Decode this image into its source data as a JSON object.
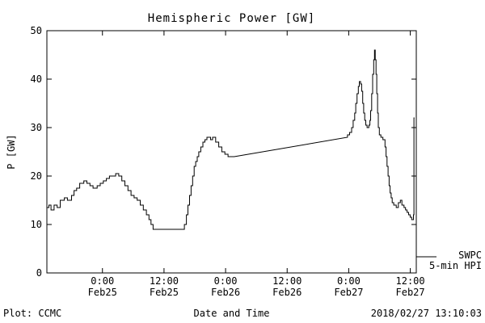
{
  "window": {
    "background": "#ffffff",
    "line_color": "#000000"
  },
  "footer": {
    "left": "Plot: CCMC",
    "right": "2018/02/27 13:10:03"
  },
  "chart_data": {
    "type": "line",
    "title": "Hemispheric Power [GW]",
    "xlabel": "Date and Time",
    "ylabel": "P [GW]",
    "ylim": [
      0,
      50
    ],
    "yticks": [
      0,
      10,
      20,
      30,
      40,
      50
    ],
    "grid": false,
    "legend_position": "right-outside",
    "legend_lines": [
      "SWPC",
      "5-min HPI"
    ],
    "x_hours_range": [
      0,
      72
    ],
    "xticks": [
      {
        "hours": 10.83,
        "time": "0:00",
        "date": "Feb25"
      },
      {
        "hours": 22.83,
        "time": "12:00",
        "date": "Feb25"
      },
      {
        "hours": 34.83,
        "time": "0:00",
        "date": "Feb26"
      },
      {
        "hours": 46.83,
        "time": "12:00",
        "date": "Feb26"
      },
      {
        "hours": 58.83,
        "time": "0:00",
        "date": "Feb27"
      },
      {
        "hours": 70.83,
        "time": "12:00",
        "date": "Feb27"
      }
    ],
    "series": [
      {
        "name": "SWPC 5-min HPI",
        "units": "GW",
        "points": [
          [
            0,
            13.5
          ],
          [
            0.4,
            13.5
          ],
          [
            0.4,
            14
          ],
          [
            0.8,
            14
          ],
          [
            0.8,
            13
          ],
          [
            1.4,
            13
          ],
          [
            1.4,
            14
          ],
          [
            2.0,
            14
          ],
          [
            2.0,
            13.5
          ],
          [
            2.6,
            13.5
          ],
          [
            2.6,
            15
          ],
          [
            3.4,
            15
          ],
          [
            3.4,
            15.5
          ],
          [
            4.0,
            15.5
          ],
          [
            4.0,
            15
          ],
          [
            4.8,
            15
          ],
          [
            4.8,
            16
          ],
          [
            5.3,
            16
          ],
          [
            5.3,
            17
          ],
          [
            5.8,
            17
          ],
          [
            5.8,
            17.5
          ],
          [
            6.4,
            17.5
          ],
          [
            6.4,
            18.5
          ],
          [
            7.2,
            18.5
          ],
          [
            7.2,
            19
          ],
          [
            7.8,
            19
          ],
          [
            7.8,
            18.5
          ],
          [
            8.4,
            18.5
          ],
          [
            8.4,
            18
          ],
          [
            9.0,
            18
          ],
          [
            9.0,
            17.5
          ],
          [
            9.8,
            17.5
          ],
          [
            9.8,
            18
          ],
          [
            10.4,
            18
          ],
          [
            10.4,
            18.5
          ],
          [
            11.0,
            18.5
          ],
          [
            11.0,
            19
          ],
          [
            11.6,
            19
          ],
          [
            11.6,
            19.5
          ],
          [
            12.2,
            19.5
          ],
          [
            12.2,
            20
          ],
          [
            13.4,
            20
          ],
          [
            13.4,
            20.5
          ],
          [
            14.0,
            20.5
          ],
          [
            14.0,
            20
          ],
          [
            14.6,
            20
          ],
          [
            14.6,
            19
          ],
          [
            15.2,
            19
          ],
          [
            15.2,
            18
          ],
          [
            15.8,
            18
          ],
          [
            15.8,
            17
          ],
          [
            16.4,
            17
          ],
          [
            16.4,
            16
          ],
          [
            17.0,
            16
          ],
          [
            17.0,
            15.5
          ],
          [
            17.6,
            15.5
          ],
          [
            17.6,
            15
          ],
          [
            18.2,
            15
          ],
          [
            18.2,
            14
          ],
          [
            18.8,
            14
          ],
          [
            18.8,
            13
          ],
          [
            19.4,
            13
          ],
          [
            19.4,
            12
          ],
          [
            19.9,
            12
          ],
          [
            19.9,
            11
          ],
          [
            20.3,
            11
          ],
          [
            20.3,
            10
          ],
          [
            20.7,
            10
          ],
          [
            20.7,
            9
          ],
          [
            26.8,
            9
          ],
          [
            26.8,
            10
          ],
          [
            27.2,
            10
          ],
          [
            27.2,
            12
          ],
          [
            27.5,
            12
          ],
          [
            27.5,
            14
          ],
          [
            27.8,
            14
          ],
          [
            27.8,
            16
          ],
          [
            28.1,
            16
          ],
          [
            28.1,
            18
          ],
          [
            28.4,
            18
          ],
          [
            28.4,
            20
          ],
          [
            28.7,
            20
          ],
          [
            28.7,
            22
          ],
          [
            29.0,
            22
          ],
          [
            29.0,
            23
          ],
          [
            29.3,
            23
          ],
          [
            29.3,
            24
          ],
          [
            29.6,
            24
          ],
          [
            29.6,
            25
          ],
          [
            30.0,
            25
          ],
          [
            30.0,
            26
          ],
          [
            30.4,
            26
          ],
          [
            30.4,
            27
          ],
          [
            30.8,
            27
          ],
          [
            30.8,
            27.5
          ],
          [
            31.2,
            27.5
          ],
          [
            31.2,
            28
          ],
          [
            31.9,
            28
          ],
          [
            31.9,
            27.5
          ],
          [
            32.3,
            27.5
          ],
          [
            32.3,
            28
          ],
          [
            32.9,
            28
          ],
          [
            32.9,
            27
          ],
          [
            33.5,
            27
          ],
          [
            33.5,
            26
          ],
          [
            34.1,
            26
          ],
          [
            34.1,
            25
          ],
          [
            34.7,
            25
          ],
          [
            34.7,
            24.5
          ],
          [
            35.3,
            24.5
          ],
          [
            35.3,
            24
          ],
          [
            36.5,
            24
          ],
          [
            58.6,
            28
          ],
          [
            58.6,
            28.5
          ],
          [
            59.0,
            28.5
          ],
          [
            59.0,
            29
          ],
          [
            59.4,
            29
          ],
          [
            59.4,
            30
          ],
          [
            59.7,
            30
          ],
          [
            59.7,
            31.5
          ],
          [
            60.0,
            31.5
          ],
          [
            60.0,
            33
          ],
          [
            60.2,
            33
          ],
          [
            60.2,
            35
          ],
          [
            60.45,
            35
          ],
          [
            60.45,
            37
          ],
          [
            60.7,
            37
          ],
          [
            60.7,
            38.5
          ],
          [
            60.9,
            38.5
          ],
          [
            60.9,
            39.5
          ],
          [
            61.15,
            39.5
          ],
          [
            61.15,
            39
          ],
          [
            61.35,
            39
          ],
          [
            61.35,
            37.5
          ],
          [
            61.55,
            37.5
          ],
          [
            61.55,
            35
          ],
          [
            61.75,
            35
          ],
          [
            61.75,
            33
          ],
          [
            61.95,
            33
          ],
          [
            61.95,
            31.5
          ],
          [
            62.15,
            31.5
          ],
          [
            62.15,
            30.5
          ],
          [
            62.4,
            30.5
          ],
          [
            62.4,
            30
          ],
          [
            62.75,
            30
          ],
          [
            62.75,
            30.5
          ],
          [
            62.95,
            30.5
          ],
          [
            62.95,
            31.5
          ],
          [
            63.1,
            31.5
          ],
          [
            63.1,
            33.5
          ],
          [
            63.3,
            33.5
          ],
          [
            63.3,
            37
          ],
          [
            63.5,
            37
          ],
          [
            63.5,
            41
          ],
          [
            63.7,
            41
          ],
          [
            63.7,
            44
          ],
          [
            63.85,
            44
          ],
          [
            63.85,
            46
          ],
          [
            64.0,
            46
          ],
          [
            64.0,
            44
          ],
          [
            64.15,
            44
          ],
          [
            64.15,
            41
          ],
          [
            64.3,
            41
          ],
          [
            64.3,
            37
          ],
          [
            64.45,
            37
          ],
          [
            64.45,
            33
          ],
          [
            64.6,
            33
          ],
          [
            64.6,
            30
          ],
          [
            64.8,
            30
          ],
          [
            64.8,
            28.5
          ],
          [
            65.1,
            28.5
          ],
          [
            65.1,
            28
          ],
          [
            65.5,
            28
          ],
          [
            65.5,
            27.5
          ],
          [
            65.9,
            27.5
          ],
          [
            65.9,
            26
          ],
          [
            66.1,
            26
          ],
          [
            66.1,
            24
          ],
          [
            66.3,
            24
          ],
          [
            66.3,
            22
          ],
          [
            66.5,
            22
          ],
          [
            66.5,
            20
          ],
          [
            66.7,
            20
          ],
          [
            66.7,
            18
          ],
          [
            66.9,
            18
          ],
          [
            66.9,
            16.5
          ],
          [
            67.1,
            16.5
          ],
          [
            67.1,
            15.5
          ],
          [
            67.3,
            15.5
          ],
          [
            67.3,
            14.5
          ],
          [
            67.6,
            14.5
          ],
          [
            67.6,
            14
          ],
          [
            68.1,
            14
          ],
          [
            68.1,
            13.5
          ],
          [
            68.5,
            13.5
          ],
          [
            68.5,
            14.5
          ],
          [
            68.9,
            14.5
          ],
          [
            68.9,
            15
          ],
          [
            69.2,
            15
          ],
          [
            69.2,
            14
          ],
          [
            69.6,
            14
          ],
          [
            69.6,
            13.5
          ],
          [
            69.9,
            13.5
          ],
          [
            69.9,
            13
          ],
          [
            70.2,
            13
          ],
          [
            70.2,
            12.5
          ],
          [
            70.5,
            12.5
          ],
          [
            70.5,
            12
          ],
          [
            70.8,
            12
          ],
          [
            70.8,
            11.5
          ],
          [
            71.1,
            11.5
          ],
          [
            71.1,
            11
          ],
          [
            71.45,
            11
          ],
          [
            71.45,
            12
          ],
          [
            71.55,
            12
          ],
          [
            71.55,
            32
          ],
          [
            71.65,
            32
          ]
        ]
      }
    ]
  }
}
